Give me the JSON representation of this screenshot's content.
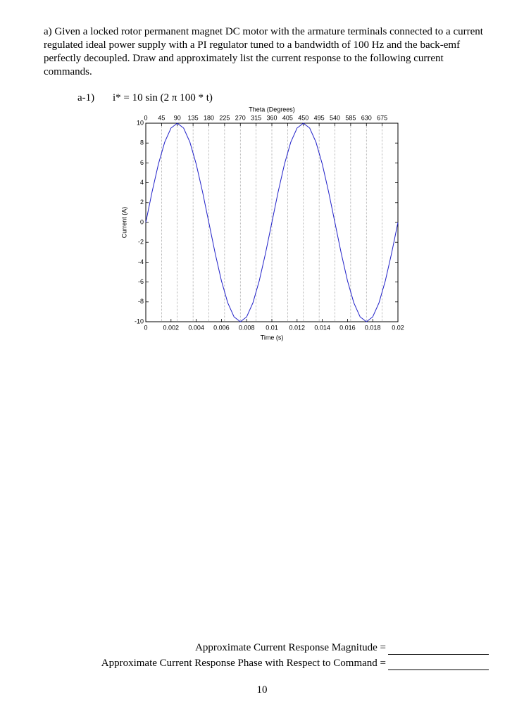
{
  "document": {
    "paragraph": "a) Given a locked rotor permanent magnet DC motor with the armature terminals connected to a current regulated ideal power supply with a PI regulator tuned to a bandwidth of 100 Hz and the back-emf perfectly decoupled.  Draw and approximately list the current response to the following current commands.",
    "item_label": "a-1)",
    "equation": "i* = 10 sin (2 π 100 * t)",
    "magnitude_prompt": "Approximate Current Response Magnitude =",
    "phase_prompt": "Approximate Current Response Phase with Respect to Command =",
    "page_number": "10"
  },
  "chart_data": {
    "type": "line",
    "x_label": "Time (s)",
    "y_label": "Current (A)",
    "x2_label": "Theta (Degrees)",
    "color": "#1f1fc8",
    "x": [
      0,
      0.0005,
      0.001,
      0.0015,
      0.002,
      0.0025,
      0.003,
      0.0035,
      0.004,
      0.0045,
      0.005,
      0.0055,
      0.006,
      0.0065,
      0.007,
      0.0075,
      0.008,
      0.0085,
      0.009,
      0.0095,
      0.01,
      0.0105,
      0.011,
      0.0115,
      0.012,
      0.0125,
      0.013,
      0.0135,
      0.014,
      0.0145,
      0.015,
      0.0155,
      0.016,
      0.0165,
      0.017,
      0.0175,
      0.018,
      0.0185,
      0.019,
      0.0195,
      0.02
    ],
    "values": [
      0,
      3.09,
      5.88,
      8.09,
      9.51,
      10,
      9.51,
      8.09,
      5.88,
      3.09,
      0,
      -3.09,
      -5.88,
      -8.09,
      -9.51,
      -10,
      -9.51,
      -8.09,
      -5.88,
      -3.09,
      0,
      3.09,
      5.88,
      8.09,
      9.51,
      10,
      9.51,
      8.09,
      5.88,
      3.09,
      0,
      -3.09,
      -5.88,
      -8.09,
      -9.51,
      -10,
      -9.51,
      -8.09,
      -5.88,
      -3.09,
      0
    ],
    "xlim": [
      0,
      0.02
    ],
    "xticks": [
      0,
      0.002,
      0.004,
      0.006,
      0.008,
      0.01,
      0.012,
      0.014,
      0.016,
      0.018,
      0.02
    ],
    "ylim": [
      -10,
      10
    ],
    "yticks": [
      -10,
      -8,
      -6,
      -4,
      -2,
      0,
      2,
      4,
      6,
      8,
      10
    ],
    "x2lim": [
      0,
      720
    ],
    "x2ticks": [
      0,
      45,
      90,
      135,
      180,
      225,
      270,
      315,
      360,
      405,
      450,
      495,
      540,
      585,
      630,
      675
    ],
    "grid": true
  }
}
